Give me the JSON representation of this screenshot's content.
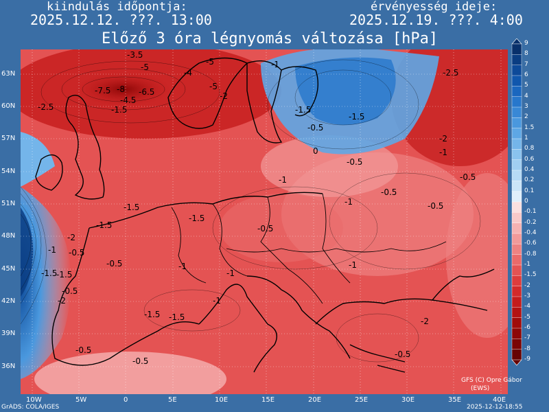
{
  "header": {
    "start_label": "kiindulás időpontja:",
    "start_time": "2025.12.12. ???. 13:00",
    "valid_label": "érvényesség ideje:",
    "valid_time": "2025.12.19. ???. 4:00",
    "title": "Előző 3 óra légnyomás változása [hPa]"
  },
  "axes": {
    "lat_labels": [
      "63N",
      "60N",
      "57N",
      "54N",
      "51N",
      "48N",
      "45N",
      "42N",
      "39N",
      "36N"
    ],
    "lon_labels": [
      "10W",
      "5W",
      "0",
      "5E",
      "10E",
      "15E",
      "20E",
      "25E",
      "30E",
      "35E",
      "40E"
    ]
  },
  "colorbar": {
    "levels": [
      "9",
      "8",
      "7",
      "6",
      "5",
      "4",
      "3",
      "2",
      "1.5",
      "1",
      "0.8",
      "0.6",
      "0.4",
      "0.2",
      "0.1",
      "0",
      "-0.1",
      "-0.2",
      "-0.4",
      "-0.6",
      "-0.8",
      "-1",
      "-1.5",
      "-2",
      "-3",
      "-4",
      "-5",
      "-6",
      "-7",
      "-8",
      "-9"
    ],
    "colors": [
      "#08306b",
      "#0a3d82",
      "#0d4a99",
      "#1057ad",
      "#1a67bf",
      "#2777cc",
      "#3888d6",
      "#4a98de",
      "#5ea7e5",
      "#74b5ea",
      "#8ac2ee",
      "#a0cef2",
      "#b6daf5",
      "#cbe5f8",
      "#e0effb",
      "#fbe0e0",
      "#f8c9c9",
      "#f5b2b2",
      "#f29a9a",
      "#ee8282",
      "#ea6a6a",
      "#e45353",
      "#dd3c3c",
      "#d22a2a",
      "#c41c1c",
      "#b31212",
      "#a00b0b",
      "#8d0707",
      "#7a0404",
      "#660202"
    ]
  },
  "map_labels": [
    {
      "text": "-3.5"
    },
    {
      "text": "-5"
    },
    {
      "text": "-7.5"
    },
    {
      "text": "-8"
    },
    {
      "text": "-6.5"
    },
    {
      "text": "-4.5"
    },
    {
      "text": "-2.5"
    },
    {
      "text": "-1.5"
    },
    {
      "text": "-5"
    },
    {
      "text": "-4"
    },
    {
      "text": "-2"
    },
    {
      "text": "-5"
    },
    {
      "text": "-1"
    },
    {
      "text": "-2.5"
    },
    {
      "text": "-1.5"
    },
    {
      "text": "-2"
    },
    {
      "text": "-1"
    },
    {
      "text": "-0.5"
    },
    {
      "text": "-0.5"
    },
    {
      "text": "-1.5"
    },
    {
      "text": "0"
    },
    {
      "text": "-0.5"
    },
    {
      "text": "-1.5"
    },
    {
      "text": "-0.5"
    },
    {
      "text": "-0.5"
    },
    {
      "text": "-0.5"
    },
    {
      "text": "-1.5"
    },
    {
      "text": "-2"
    },
    {
      "text": "-1"
    },
    {
      "text": "-0.5"
    },
    {
      "text": "-1.5"
    },
    {
      "text": "-2"
    },
    {
      "text": "-1"
    },
    {
      "text": "-0.5"
    },
    {
      "text": "-1.5"
    },
    {
      "text": "-0.5"
    },
    {
      "text": "-1"
    },
    {
      "text": "-1.5"
    },
    {
      "text": "-1.5"
    },
    {
      "text": "-1"
    },
    {
      "text": "-1"
    },
    {
      "text": "-0.5"
    },
    {
      "text": "-0.5"
    },
    {
      "text": "-1"
    },
    {
      "text": "-2"
    },
    {
      "text": "-1"
    },
    {
      "text": "-0.5"
    },
    {
      "text": "-1.5"
    }
  ],
  "credit": {
    "line1": "GFS (C) Opre Gábor",
    "line2": "(EWS)"
  },
  "footer": {
    "left": "GrADS: COLA/IGES",
    "right": "2025-12-12-18:55"
  }
}
